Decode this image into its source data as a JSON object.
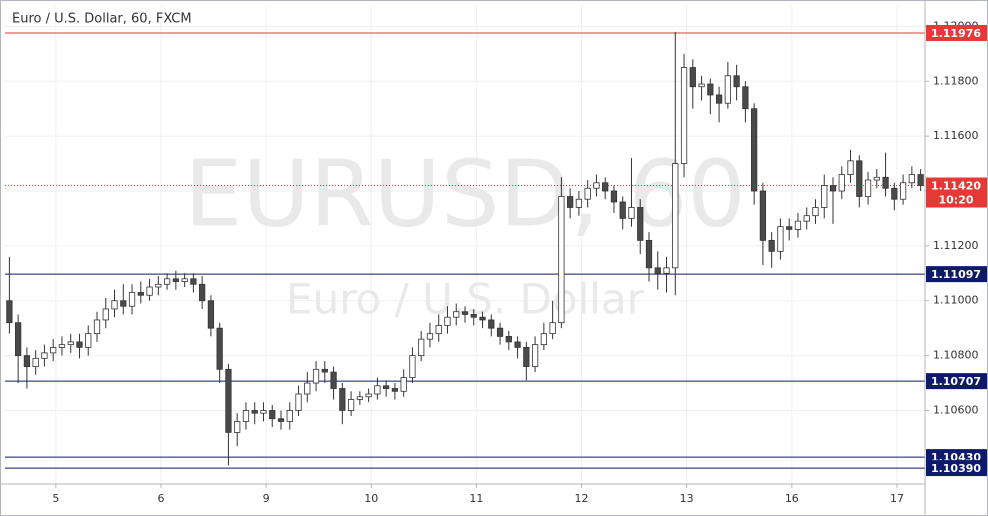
{
  "chart_data": {
    "type": "candlestick",
    "title": "Euro / U.S. Dollar, 60, FXCM",
    "watermark": "EURUSD, 60",
    "watermark_subtitle": "Euro / U.S. Dollar",
    "up_color": "#ffffff",
    "down_color": "#4a4a4a",
    "border_color": "#333333",
    "grid": true,
    "xlim": [
      0,
      105
    ],
    "xticks": [
      {
        "value": 5.8,
        "label": "5"
      },
      {
        "value": 17.8,
        "label": "6"
      },
      {
        "value": 29.8,
        "label": "9"
      },
      {
        "value": 41.8,
        "label": "10"
      },
      {
        "value": 53.8,
        "label": "11"
      },
      {
        "value": 65.8,
        "label": "12"
      },
      {
        "value": 77.8,
        "label": "13"
      },
      {
        "value": 89.8,
        "label": "16"
      },
      {
        "value": 101.8,
        "label": "17"
      }
    ],
    "ylim": [
      1.10332,
      1.12078
    ],
    "yticks": [
      {
        "value": 1.106,
        "label": "1.10600"
      },
      {
        "value": 1.108,
        "label": "1.10800"
      },
      {
        "value": 1.11,
        "label": "1.11000"
      },
      {
        "value": 1.112,
        "label": "1.11200"
      },
      {
        "value": 1.114,
        "label": "1.11400"
      },
      {
        "value": 1.116,
        "label": "1.11600"
      },
      {
        "value": 1.118,
        "label": "1.11800"
      },
      {
        "value": 1.12,
        "label": "1.12000"
      }
    ],
    "levels": [
      {
        "value": 1.11976,
        "label": "1.11976",
        "color": "#e53935"
      },
      {
        "value": 1.11097,
        "label": "1.11097",
        "color": "#0d1a6b"
      },
      {
        "value": 1.10707,
        "label": "1.10707",
        "color": "#0d1a6b"
      },
      {
        "value": 1.1043,
        "label": "1.10430",
        "color": "#0d1a6b"
      },
      {
        "value": 1.1039,
        "label": "1.10390",
        "color": "#0d1a6b"
      }
    ],
    "current_price": {
      "value": 1.1142,
      "label": "1.11420",
      "countdown": "10:20",
      "color": "#e53935"
    },
    "open": [
      1.11,
      1.1092,
      1.108,
      1.1076,
      1.1079,
      1.1081,
      1.1083,
      1.1084,
      1.1085,
      1.1083,
      1.1088,
      1.1093,
      1.1097,
      1.11,
      1.1098,
      1.1103,
      1.1102,
      1.1105,
      1.1106,
      1.1108,
      1.1107,
      1.1108,
      1.1106,
      1.11,
      1.109,
      1.1075,
      1.1052,
      1.1056,
      1.106,
      1.1059,
      1.106,
      1.1057,
      1.1056,
      1.106,
      1.1066,
      1.107,
      1.1075,
      1.1074,
      1.1068,
      1.106,
      1.1064,
      1.1065,
      1.1066,
      1.1069,
      1.1068,
      1.1067,
      1.1072,
      1.108,
      1.1086,
      1.1088,
      1.1091,
      1.1094,
      1.1096,
      1.1095,
      1.1094,
      1.1093,
      1.109,
      1.1087,
      1.1085,
      1.1083,
      1.1076,
      1.1084,
      1.1088,
      1.1092,
      1.1138,
      1.1134,
      1.1137,
      1.1141,
      1.1143,
      1.114,
      1.1136,
      1.113,
      1.1134,
      1.1122,
      1.1112,
      1.111,
      1.1112,
      1.115,
      1.1185,
      1.1178,
      1.1179,
      1.1175,
      1.1172,
      1.1182,
      1.1178,
      1.117,
      1.114,
      1.1122,
      1.1118,
      1.1127,
      1.1126,
      1.1129,
      1.1131,
      1.1134,
      1.1142,
      1.114,
      1.1146,
      1.1151,
      1.1138,
      1.1144,
      1.1145,
      1.1141,
      1.1137,
      1.1143,
      1.1146
    ],
    "high": [
      1.1116,
      1.1095,
      1.1083,
      1.1082,
      1.1084,
      1.1086,
      1.1087,
      1.1088,
      1.1088,
      1.1091,
      1.1096,
      1.1101,
      1.1104,
      1.1106,
      1.1106,
      1.1107,
      1.1108,
      1.1109,
      1.111,
      1.1111,
      1.111,
      1.111,
      1.1109,
      1.1102,
      1.1092,
      1.1077,
      1.1059,
      1.1063,
      1.1063,
      1.1063,
      1.1062,
      1.106,
      1.1063,
      1.1069,
      1.1074,
      1.1078,
      1.1078,
      1.1076,
      1.107,
      1.1067,
      1.1067,
      1.1068,
      1.1072,
      1.1071,
      1.107,
      1.1075,
      1.1083,
      1.1089,
      1.1092,
      1.1095,
      1.1098,
      1.1099,
      1.1098,
      1.1097,
      1.1096,
      1.1095,
      1.1092,
      1.1089,
      1.1087,
      1.1085,
      1.1087,
      1.1092,
      1.11,
      1.1145,
      1.1141,
      1.114,
      1.1144,
      1.1146,
      1.1145,
      1.1142,
      1.1138,
      1.1152,
      1.1137,
      1.1125,
      1.1118,
      1.1116,
      1.1198,
      1.119,
      1.1188,
      1.1182,
      1.1181,
      1.1178,
      1.1187,
      1.1186,
      1.118,
      1.1172,
      1.1143,
      1.1125,
      1.113,
      1.113,
      1.1132,
      1.1134,
      1.1137,
      1.1146,
      1.1145,
      1.1149,
      1.1155,
      1.1153,
      1.1147,
      1.1148,
      1.1154,
      1.1143,
      1.1146,
      1.1149,
      1.1148
    ],
    "low": [
      1.1088,
      1.107,
      1.1068,
      1.1073,
      1.1076,
      1.1078,
      1.108,
      1.1081,
      1.1079,
      1.108,
      1.1085,
      1.109,
      1.1094,
      1.1095,
      1.1095,
      1.1099,
      1.11,
      1.1102,
      1.1104,
      1.1104,
      1.1105,
      1.1103,
      1.1097,
      1.1087,
      1.107,
      1.104,
      1.1047,
      1.1053,
      1.1055,
      1.1056,
      1.1054,
      1.1053,
      1.1053,
      1.1058,
      1.1063,
      1.1067,
      1.107,
      1.1064,
      1.1055,
      1.1058,
      1.1062,
      1.1063,
      1.1064,
      1.1065,
      1.1064,
      1.1065,
      1.107,
      1.1078,
      1.1083,
      1.1085,
      1.1088,
      1.1091,
      1.1092,
      1.1091,
      1.109,
      1.1087,
      1.1084,
      1.1082,
      1.1079,
      1.1071,
      1.1074,
      1.1082,
      1.1086,
      1.109,
      1.113,
      1.1131,
      1.1134,
      1.1138,
      1.1137,
      1.1132,
      1.1126,
      1.1127,
      1.1117,
      1.1107,
      1.1104,
      1.1103,
      1.1102,
      1.1145,
      1.117,
      1.1173,
      1.1168,
      1.1165,
      1.117,
      1.1173,
      1.1165,
      1.1135,
      1.1113,
      1.1112,
      1.1115,
      1.1122,
      1.1123,
      1.1126,
      1.1128,
      1.113,
      1.1128,
      1.1137,
      1.1143,
      1.1134,
      1.1135,
      1.1141,
      1.1138,
      1.1133,
      1.1135,
      1.1141,
      1.114
    ],
    "close": [
      1.1092,
      1.108,
      1.1076,
      1.1079,
      1.1081,
      1.1083,
      1.1084,
      1.1085,
      1.1083,
      1.1088,
      1.1093,
      1.1097,
      1.11,
      1.1098,
      1.1103,
      1.1102,
      1.1105,
      1.1106,
      1.1108,
      1.1107,
      1.1108,
      1.1106,
      1.11,
      1.109,
      1.1075,
      1.1052,
      1.1056,
      1.106,
      1.1059,
      1.106,
      1.1057,
      1.1056,
      1.106,
      1.1066,
      1.107,
      1.1075,
      1.1074,
      1.1068,
      1.106,
      1.1064,
      1.1065,
      1.1066,
      1.1069,
      1.1068,
      1.1067,
      1.1072,
      1.108,
      1.1086,
      1.1088,
      1.1091,
      1.1094,
      1.1096,
      1.1095,
      1.1094,
      1.1093,
      1.109,
      1.1087,
      1.1085,
      1.1083,
      1.1076,
      1.1084,
      1.1088,
      1.1092,
      1.1138,
      1.1134,
      1.1137,
      1.1141,
      1.1143,
      1.114,
      1.1136,
      1.113,
      1.1134,
      1.1122,
      1.1112,
      1.111,
      1.1112,
      1.115,
      1.1185,
      1.1178,
      1.1179,
      1.1175,
      1.1172,
      1.1182,
      1.1178,
      1.117,
      1.114,
      1.1122,
      1.1118,
      1.1127,
      1.1126,
      1.1129,
      1.1131,
      1.1134,
      1.1142,
      1.114,
      1.1146,
      1.1151,
      1.1138,
      1.1144,
      1.1145,
      1.1141,
      1.1137,
      1.1143,
      1.1146,
      1.1142
    ]
  }
}
